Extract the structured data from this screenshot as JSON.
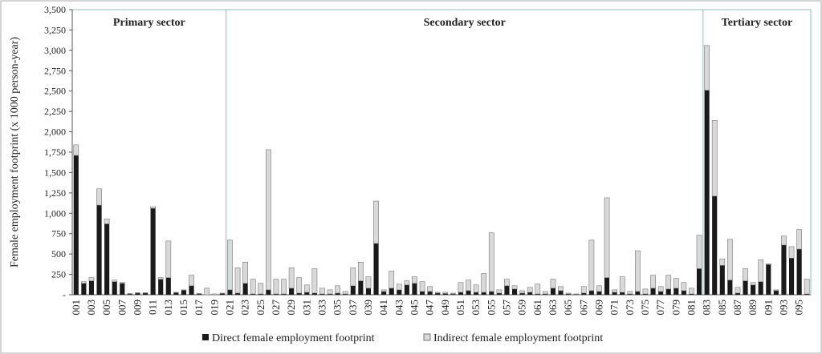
{
  "chart_data": {
    "type": "stacked_bar",
    "y_label": "Female employment footprint (x 1000 person-year)",
    "sectors": [
      {
        "label": "Primary sector"
      },
      {
        "label": "Secondary sector"
      },
      {
        "label": "Tertiary sector"
      }
    ],
    "categories": [
      "001",
      null,
      "003",
      null,
      "005",
      null,
      "007",
      null,
      "009",
      null,
      "011",
      null,
      "013",
      null,
      "015",
      null,
      "017",
      null,
      "019",
      null,
      "021",
      null,
      "023",
      null,
      "025",
      null,
      "027",
      null,
      "029",
      null,
      "031",
      null,
      "033",
      null,
      "035",
      null,
      "037",
      null,
      "039",
      null,
      "041",
      null,
      "043",
      null,
      "045",
      null,
      "047",
      null,
      "049",
      null,
      "051",
      null,
      "053",
      null,
      "055",
      null,
      "057",
      null,
      "059",
      null,
      "061",
      null,
      "063",
      null,
      "065",
      null,
      "067",
      null,
      "069",
      null,
      "071",
      null,
      "073",
      null,
      "075",
      null,
      "077",
      null,
      "079",
      null,
      "081",
      null,
      "083",
      null,
      "085",
      null,
      "087",
      null,
      "089",
      null,
      "091",
      null,
      "093",
      null,
      "095",
      null
    ],
    "series": [
      {
        "name": "Direct female employment footprint",
        "color": "#1a1a1a",
        "values": [
          1710,
          140,
          170,
          1100,
          870,
          160,
          140,
          10,
          20,
          20,
          1060,
          190,
          210,
          25,
          55,
          110,
          10,
          0,
          0,
          15,
          60,
          20,
          140,
          10,
          10,
          60,
          10,
          10,
          80,
          20,
          30,
          20,
          10,
          10,
          20,
          10,
          110,
          170,
          80,
          630,
          40,
          80,
          60,
          120,
          140,
          40,
          40,
          20,
          15,
          10,
          30,
          50,
          30,
          30,
          40,
          20,
          110,
          70,
          20,
          30,
          10,
          10,
          80,
          50,
          10,
          5,
          20,
          50,
          40,
          210,
          30,
          30,
          10,
          40,
          10,
          80,
          40,
          70,
          80,
          50,
          10,
          320,
          2510,
          1210,
          360,
          180,
          20,
          170,
          120,
          160,
          370,
          50,
          610,
          450,
          560,
          10
        ]
      },
      {
        "name": "Indirect female employment footprint",
        "color": "#d9d9d9",
        "values": [
          130,
          20,
          40,
          200,
          60,
          20,
          10,
          5,
          5,
          5,
          20,
          20,
          450,
          5,
          5,
          130,
          5,
          80,
          10,
          5,
          610,
          310,
          260,
          180,
          130,
          1720,
          180,
          180,
          250,
          190,
          90,
          300,
          70,
          50,
          90,
          30,
          220,
          230,
          140,
          520,
          20,
          210,
          70,
          50,
          80,
          120,
          60,
          10,
          15,
          10,
          120,
          130,
          90,
          230,
          720,
          40,
          80,
          40,
          30,
          60,
          120,
          30,
          110,
          50,
          10,
          5,
          80,
          620,
          70,
          980,
          30,
          190,
          30,
          500,
          60,
          160,
          60,
          170,
          120,
          100,
          70,
          410,
          550,
          930,
          80,
          500,
          70,
          150,
          30,
          270,
          10,
          10,
          110,
          140,
          240,
          180
        ]
      }
    ],
    "ylim": [
      0,
      3500
    ],
    "yticks": [
      {
        "value": 0,
        "label": "-"
      },
      250,
      500,
      750,
      {
        "value": 1000,
        "label": "1,000"
      },
      {
        "value": 1250,
        "label": "1,250"
      },
      {
        "value": 1500,
        "label": "1,500"
      },
      {
        "value": 1750,
        "label": "1,750"
      },
      {
        "value": 2000,
        "label": "2,000"
      },
      {
        "value": 2250,
        "label": "2,250"
      },
      {
        "value": 2500,
        "label": "2,500"
      },
      {
        "value": 2750,
        "label": "2,750"
      },
      {
        "value": 3000,
        "label": "3,000"
      },
      {
        "value": 3250,
        "label": "3,250"
      },
      {
        "value": 3500,
        "label": "3,500"
      }
    ]
  }
}
